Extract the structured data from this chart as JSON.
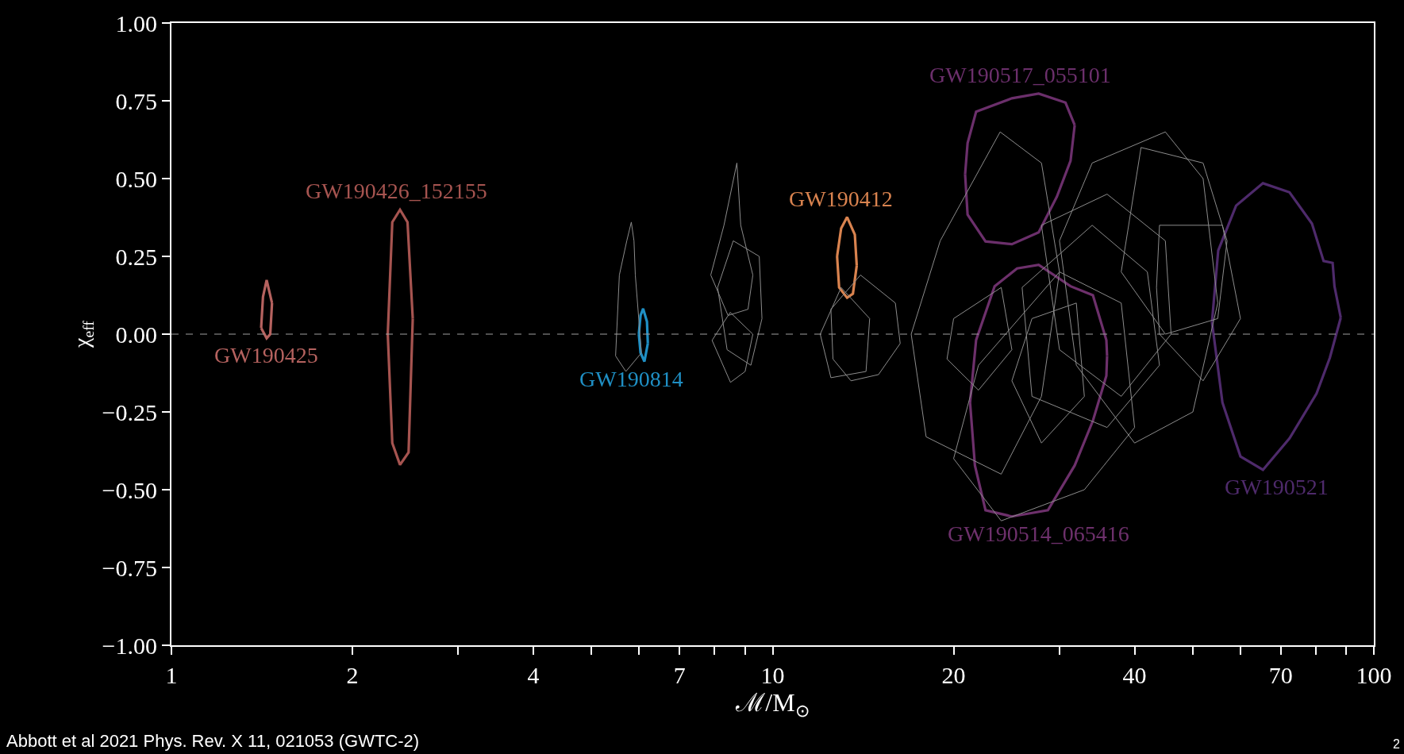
{
  "chart_data": {
    "type": "line",
    "xlabel": "ℳ/M$_{⊙}$",
    "ylabel": "χ$_{eff}$",
    "log": "x",
    "grid": false,
    "legend": false,
    "marker": "none",
    "line_style": "solid",
    "xlim": [
      1,
      100
    ],
    "xticks": [
      1,
      2,
      {
        "value": 3,
        "label": null
      },
      4,
      {
        "value": 5,
        "label": null
      },
      {
        "value": 6,
        "label": null
      },
      7,
      {
        "value": 8,
        "label": null
      },
      {
        "value": 9,
        "label": null
      },
      10,
      20,
      {
        "value": 30,
        "label": null
      },
      40,
      {
        "value": 50,
        "label": null
      },
      {
        "value": 60,
        "label": null
      },
      70,
      {
        "value": 80,
        "label": null
      },
      {
        "value": 90,
        "label": null
      },
      100
    ],
    "ylim": [
      -1,
      1
    ],
    "yticks": [
      {
        "value": -1,
        "label": "−1.00"
      },
      {
        "value": -0.75,
        "label": "−0.75"
      },
      {
        "value": -0.5,
        "label": "−0.50"
      },
      {
        "value": -0.25,
        "label": "−0.25"
      },
      {
        "value": 0,
        "label": "0.00"
      },
      {
        "value": 0.25,
        "label": "0.25"
      },
      {
        "value": 0.5,
        "label": "0.50"
      },
      {
        "value": 0.75,
        "label": "0.75"
      },
      {
        "value": 1,
        "label": "1.00"
      }
    ],
    "ref_lines": [
      {
        "axis": "y",
        "value": 0,
        "color": "#a0a0a0",
        "line_style": "dashed"
      }
    ],
    "series": [
      {
        "name": "GW190425",
        "color": "#b5625f",
        "x": [
          1.41,
          1.42,
          1.44,
          1.47,
          null,
          1.41,
          1.44,
          1.46,
          1.47
        ],
        "values": [
          0.02,
          0.12,
          0.174,
          0.1,
          null,
          0.02,
          -0.013,
          0.0,
          0.1
        ]
      },
      {
        "name": "GW190426_152155",
        "color": "#a65450",
        "x": [
          2.29,
          2.33,
          2.4,
          2.47,
          2.52,
          null,
          2.29,
          2.33,
          2.4,
          2.48,
          2.52
        ],
        "values": [
          0.0,
          0.36,
          0.4,
          0.36,
          0.05,
          null,
          0.0,
          -0.35,
          -0.42,
          -0.38,
          0.05
        ]
      },
      {
        "name": "GW190814",
        "color": "#1f8fc4",
        "x": [
          5.99,
          6.03,
          6.09,
          6.18,
          6.2,
          null,
          5.99,
          6.03,
          6.12,
          6.2
        ],
        "values": [
          0.0,
          0.06,
          0.082,
          0.04,
          -0.03,
          null,
          0.0,
          -0.06,
          -0.088,
          -0.03
        ]
      },
      {
        "name": "GW190412",
        "color": "#d9834f",
        "x": [
          12.8,
          13.0,
          13.3,
          13.7,
          13.8,
          null,
          12.8,
          12.9,
          13.3,
          13.6,
          13.8
        ],
        "values": [
          0.25,
          0.34,
          0.376,
          0.32,
          0.22,
          null,
          0.25,
          0.15,
          0.117,
          0.13,
          0.22
        ]
      },
      {
        "name": "GW190517_055101",
        "color": "#6b2f6b",
        "x": [
          20.9,
          21.1,
          21.8,
          25.0,
          27.7,
          30.7,
          31.8,
          null,
          20.9,
          21.1,
          22.6,
          25.0,
          27.7,
          29.7,
          31.3,
          31.8
        ],
        "values": [
          0.514,
          0.614,
          0.715,
          0.758,
          0.773,
          0.744,
          0.672,
          null,
          0.514,
          0.384,
          0.298,
          0.289,
          0.327,
          0.442,
          0.557,
          0.672
        ]
      },
      {
        "name": "GW190514_065416",
        "color": "#6d306b",
        "x": [
          21.3,
          21.8,
          23.4,
          25.5,
          27.7,
          31.3,
          34.1,
          35.9,
          36.0,
          null,
          21.3,
          21.7,
          22.6,
          25.0,
          28.7,
          31.8,
          34.1,
          35.9,
          36.0
        ],
        "values": [
          -0.22,
          -0.019,
          0.154,
          0.211,
          0.223,
          0.154,
          0.125,
          -0.019,
          -0.07,
          null,
          -0.22,
          -0.422,
          -0.566,
          -0.586,
          -0.566,
          -0.422,
          -0.278,
          -0.134,
          -0.07
        ]
      },
      {
        "name": "GW190521",
        "color": "#4e2a6b",
        "x": [
          53.8,
          55.1,
          59.0,
          65.4,
          72.4,
          78.9,
          82.5,
          85.4,
          86.0,
          88.1,
          null,
          53.8,
          56.0,
          60.0,
          65.4,
          72.4,
          80.3,
          84.5,
          88.1
        ],
        "values": [
          0.039,
          0.269,
          0.413,
          0.485,
          0.456,
          0.355,
          0.235,
          0.229,
          0.154,
          0.053,
          null,
          0.039,
          -0.22,
          -0.393,
          -0.436,
          -0.335,
          -0.191,
          -0.076,
          0.053
        ]
      },
      {
        "color": "#8c8c8c",
        "x": [
          5.48,
          5.56,
          5.72,
          5.82,
          5.88,
          5.91,
          6.05,
          null,
          5.48,
          5.7,
          6.05
        ],
        "values": [
          -0.07,
          0.19,
          0.3,
          0.36,
          0.3,
          0.19,
          -0.06,
          null,
          -0.07,
          -0.12,
          -0.06
        ]
      },
      {
        "color": "#8c8c8c",
        "x": [
          7.89,
          8.3,
          8.72,
          8.85,
          9.27,
          null,
          7.89,
          8.43,
          9.1,
          9.27
        ],
        "values": [
          0.19,
          0.35,
          0.55,
          0.35,
          0.19,
          null,
          0.19,
          0.06,
          0.08,
          0.19
        ]
      },
      {
        "color": "#8c8c8c",
        "x": [
          8.1,
          8.6,
          9.5,
          9.6,
          null,
          8.1,
          8.4,
          9.2,
          9.6
        ],
        "values": [
          0.15,
          0.3,
          0.25,
          0.05,
          null,
          0.15,
          -0.05,
          -0.1,
          0.05
        ]
      },
      {
        "color": "#8c8c8c",
        "x": [
          7.93,
          8.5,
          9.27,
          null,
          7.93,
          8.51,
          9.0,
          9.27
        ],
        "values": [
          -0.02,
          0.07,
          0.0,
          null,
          -0.02,
          -0.155,
          -0.12,
          0.0
        ]
      },
      {
        "color": "#8c8c8c",
        "x": [
          12.5,
          14.0,
          16.0,
          16.3,
          null,
          12.5,
          12.6,
          13.5,
          15.0,
          16.3
        ],
        "values": [
          0.08,
          0.19,
          0.1,
          -0.03,
          null,
          0.08,
          -0.08,
          -0.15,
          -0.13,
          -0.03
        ]
      },
      {
        "color": "#8c8c8c",
        "x": [
          12.0,
          13.0,
          14.5,
          null,
          12.0,
          12.5,
          14.3,
          14.5
        ],
        "values": [
          0.0,
          0.15,
          0.05,
          null,
          0.0,
          -0.14,
          -0.12,
          0.05
        ]
      },
      {
        "color": "#8c8c8c",
        "x": [
          17,
          19,
          23.9,
          28,
          30,
          null,
          17,
          18,
          24,
          28,
          30
        ],
        "values": [
          0.0,
          0.3,
          0.65,
          0.55,
          0.2,
          null,
          0.0,
          -0.33,
          -0.45,
          -0.2,
          0.2
        ]
      },
      {
        "color": "#8c8c8c",
        "x": [
          30,
          34,
          45,
          52,
          55,
          null,
          30,
          32,
          40,
          50,
          55
        ],
        "values": [
          0.3,
          0.55,
          0.65,
          0.5,
          0.1,
          null,
          0.3,
          -0.1,
          -0.35,
          -0.25,
          0.1
        ]
      },
      {
        "color": "#8c8c8c",
        "x": [
          38,
          41,
          52,
          57,
          null,
          38,
          45,
          55,
          57
        ],
        "values": [
          0.2,
          0.6,
          0.55,
          0.3,
          null,
          0.2,
          0.0,
          0.05,
          0.3
        ]
      },
      {
        "color": "#8c8c8c",
        "x": [
          20,
          22,
          30,
          38,
          40,
          null,
          20,
          24,
          33,
          40
        ],
        "values": [
          -0.4,
          -0.1,
          0.2,
          0.1,
          -0.3,
          null,
          -0.4,
          -0.6,
          -0.5,
          -0.3
        ]
      },
      {
        "color": "#8c8c8c",
        "x": [
          26,
          34,
          42,
          44,
          null,
          26,
          27,
          36,
          44
        ],
        "values": [
          0.15,
          0.35,
          0.2,
          -0.1,
          null,
          0.15,
          -0.2,
          -0.3,
          -0.1
        ]
      },
      {
        "color": "#8c8c8c",
        "x": [
          28,
          36,
          45,
          46,
          null,
          28,
          30,
          38,
          46
        ],
        "values": [
          0.35,
          0.45,
          0.3,
          0.0,
          null,
          0.35,
          -0.05,
          -0.2,
          0.0
        ]
      },
      {
        "color": "#8c8c8c",
        "x": [
          19.5,
          20,
          24,
          25,
          null,
          19.5,
          22,
          25
        ],
        "values": [
          -0.08,
          0.05,
          0.15,
          -0.05,
          null,
          -0.08,
          -0.18,
          -0.05
        ]
      },
      {
        "color": "#8c8c8c",
        "x": [
          25,
          27,
          32,
          33,
          null,
          25,
          28,
          33
        ],
        "values": [
          -0.15,
          0.05,
          0.1,
          -0.2,
          null,
          -0.15,
          -0.35,
          -0.2
        ]
      },
      {
        "color": "#8c8c8c",
        "x": [
          43.5,
          44,
          56,
          60,
          null,
          43.5,
          44,
          52,
          60
        ],
        "values": [
          0.15,
          0.35,
          0.35,
          0.05,
          null,
          0.15,
          0.0,
          -0.15,
          0.05
        ]
      }
    ],
    "annotations": [
      "Abbott et al 2021 Phys. Rev. X 11, 021053 (GWTC-2)",
      "2"
    ]
  }
}
